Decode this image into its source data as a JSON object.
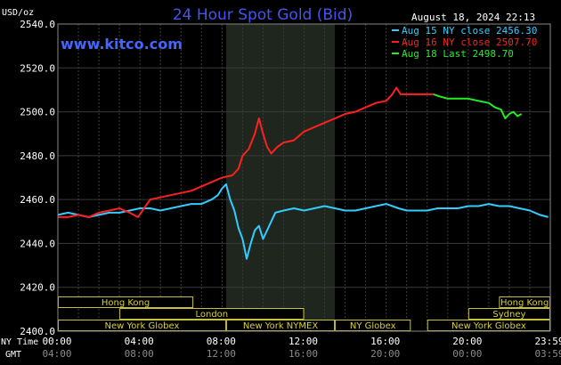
{
  "chart_data": {
    "type": "line",
    "title": "24 Hour Spot Gold (Bid)",
    "website": "www.kitco.com",
    "date_label": "August 18, 2024 22:13",
    "y_unit": "USD/oz",
    "ylim": [
      2400,
      2540
    ],
    "y_ticks": [
      "2540.0",
      "2520.0",
      "2500.0",
      "2480.0",
      "2460.0",
      "2440.0",
      "2420.0",
      "2400.0"
    ],
    "y_tick_values": [
      2540,
      2520,
      2500,
      2480,
      2460,
      2440,
      2420,
      2400
    ],
    "x_hours": [
      0,
      4,
      8,
      12,
      16,
      20,
      24
    ],
    "x_ticks_ny": [
      "00:00",
      "04:00",
      "08:00",
      "12:00",
      "16:00",
      "20:00",
      "23:59"
    ],
    "x_ticks_gmt": [
      "04:00",
      "08:00",
      "12:00",
      "16:00",
      "20:00",
      "00:00",
      "03:59"
    ],
    "x_row_label_ny": "NY Time",
    "x_row_label_gmt": "GMT",
    "grid": true,
    "legend_position": "top-right",
    "highlight_band": {
      "from_hour": 8.2,
      "to_hour": 13.5
    },
    "series": [
      {
        "name": "Aug 15 NY close 2456.30",
        "color": "#33ccff",
        "points": [
          [
            0,
            2453
          ],
          [
            0.5,
            2454
          ],
          [
            1,
            2453
          ],
          [
            1.5,
            2452
          ],
          [
            2,
            2453
          ],
          [
            2.5,
            2454
          ],
          [
            3,
            2454
          ],
          [
            3.5,
            2455
          ],
          [
            4,
            2456
          ],
          [
            4.5,
            2456
          ],
          [
            5,
            2455
          ],
          [
            5.5,
            2456
          ],
          [
            6,
            2457
          ],
          [
            6.5,
            2458
          ],
          [
            7,
            2458
          ],
          [
            7.5,
            2460
          ],
          [
            7.8,
            2462
          ],
          [
            8,
            2465
          ],
          [
            8.2,
            2467
          ],
          [
            8.4,
            2460
          ],
          [
            8.6,
            2455
          ],
          [
            8.8,
            2447
          ],
          [
            9.0,
            2442
          ],
          [
            9.2,
            2433
          ],
          [
            9.4,
            2440
          ],
          [
            9.6,
            2446
          ],
          [
            9.8,
            2448
          ],
          [
            10.0,
            2442
          ],
          [
            10.3,
            2448
          ],
          [
            10.6,
            2454
          ],
          [
            11,
            2455
          ],
          [
            11.5,
            2456
          ],
          [
            12,
            2455
          ],
          [
            12.5,
            2456
          ],
          [
            13,
            2457
          ],
          [
            13.5,
            2456
          ],
          [
            14,
            2455
          ],
          [
            14.5,
            2455
          ],
          [
            15,
            2456
          ],
          [
            15.5,
            2457
          ],
          [
            16,
            2458
          ],
          [
            16.3,
            2457
          ],
          [
            16.6,
            2456
          ],
          [
            17,
            2455
          ],
          [
            17.5,
            2455
          ],
          [
            18,
            2455
          ],
          [
            18.5,
            2456
          ],
          [
            19,
            2456
          ],
          [
            19.5,
            2456
          ],
          [
            20,
            2457
          ],
          [
            20.5,
            2457
          ],
          [
            21,
            2458
          ],
          [
            21.5,
            2457
          ],
          [
            22,
            2457
          ],
          [
            22.5,
            2456
          ],
          [
            23,
            2455
          ],
          [
            23.5,
            2453
          ],
          [
            23.9,
            2452
          ]
        ]
      },
      {
        "name": "Aug 16 NY close 2507.70",
        "color": "#ff2020",
        "points": [
          [
            0,
            2452
          ],
          [
            0.5,
            2452
          ],
          [
            1,
            2453
          ],
          [
            1.5,
            2452
          ],
          [
            2,
            2454
          ],
          [
            2.5,
            2455
          ],
          [
            3,
            2456
          ],
          [
            3.5,
            2454
          ],
          [
            3.9,
            2452
          ],
          [
            4.2,
            2456
          ],
          [
            4.5,
            2460
          ],
          [
            5,
            2461
          ],
          [
            5.5,
            2462
          ],
          [
            6,
            2463
          ],
          [
            6.5,
            2464
          ],
          [
            7,
            2466
          ],
          [
            7.5,
            2468
          ],
          [
            8,
            2470
          ],
          [
            8.5,
            2471
          ],
          [
            8.8,
            2474
          ],
          [
            9,
            2480
          ],
          [
            9.3,
            2483
          ],
          [
            9.6,
            2490
          ],
          [
            9.8,
            2497
          ],
          [
            10.0,
            2490
          ],
          [
            10.2,
            2484
          ],
          [
            10.4,
            2481
          ],
          [
            10.7,
            2484
          ],
          [
            11,
            2486
          ],
          [
            11.5,
            2487
          ],
          [
            12,
            2491
          ],
          [
            12.5,
            2493
          ],
          [
            13,
            2495
          ],
          [
            13.5,
            2497
          ],
          [
            14,
            2499
          ],
          [
            14.5,
            2500
          ],
          [
            15,
            2502
          ],
          [
            15.5,
            2504
          ],
          [
            16,
            2505
          ],
          [
            16.3,
            2508
          ],
          [
            16.5,
            2511
          ],
          [
            16.7,
            2508
          ],
          [
            17,
            2508
          ],
          [
            17.5,
            2508
          ],
          [
            18,
            2508
          ],
          [
            18.3,
            2508
          ]
        ]
      },
      {
        "name": "Aug 18 Last 2498.70",
        "color": "#22ee22",
        "points": [
          [
            18.3,
            2508
          ],
          [
            18.6,
            2507
          ],
          [
            19,
            2506
          ],
          [
            19.5,
            2506
          ],
          [
            20,
            2506
          ],
          [
            20.5,
            2505
          ],
          [
            21,
            2504
          ],
          [
            21.3,
            2502
          ],
          [
            21.6,
            2501
          ],
          [
            21.8,
            2497
          ],
          [
            22.0,
            2499
          ],
          [
            22.2,
            2500
          ],
          [
            22.4,
            2498
          ],
          [
            22.6,
            2499
          ]
        ]
      }
    ],
    "sessions": [
      {
        "label": "Hong Kong",
        "from_hour": 0,
        "to_hour": 6.6,
        "row": 0
      },
      {
        "label": "Hong Kong",
        "from_hour": 21.5,
        "to_hour": 24,
        "row": 0
      },
      {
        "label": "London",
        "from_hour": 3,
        "to_hour": 12,
        "row": 1
      },
      {
        "label": "Sydney",
        "from_hour": 20,
        "to_hour": 24,
        "row": 1
      },
      {
        "label": "New York Globex",
        "from_hour": 0,
        "to_hour": 8.2,
        "row": 2
      },
      {
        "label": "New York NYMEX",
        "from_hour": 8.2,
        "to_hour": 13.5,
        "row": 2
      },
      {
        "label": "NY Globex",
        "from_hour": 13.5,
        "to_hour": 17.2,
        "row": 2
      },
      {
        "label": "New York Globex",
        "from_hour": 18,
        "to_hour": 24,
        "row": 2
      }
    ]
  }
}
